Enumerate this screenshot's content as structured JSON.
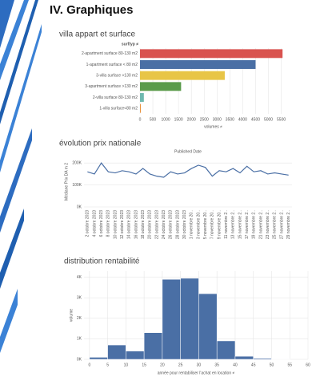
{
  "header": {
    "title": "IV. Graphiques"
  },
  "chart_data": [
    {
      "type": "hbar",
      "title": "villa appart et surface",
      "legend_title": "surftyp ≠",
      "categories": [
        "2-apartment surface 80-130 m2",
        "1-apartment surface < 80 m2",
        "3-villa surface >130 m2",
        "3-apartment surface >130 m2",
        "2-villa surface 80-130 m2",
        "1-villa surface<80 m2"
      ],
      "values": [
        5550,
        4500,
        3300,
        1600,
        150,
        30
      ],
      "colors": [
        "#d9534f",
        "#4a6fa5",
        "#e8c547",
        "#5a9b4b",
        "#6fb9b0",
        "#e8903a"
      ],
      "xlabel": "volumes ≠",
      "xlim": [
        0,
        5700
      ],
      "xticks": [
        0,
        500,
        1000,
        1500,
        2000,
        2500,
        3000,
        3500,
        4000,
        4500,
        5000,
        5500
      ]
    },
    {
      "type": "line",
      "title": "évolution prix nationale",
      "subtitle": "Published Date",
      "ylabel": "Médiane Prix DA m 2",
      "categories": [
        "2 octobre 2023",
        "4 octobre 2023",
        "6 octobre 2023",
        "8 octobre 2023",
        "10 octobre 2023",
        "12 octobre 2023",
        "14 octobre 2023",
        "16 octobre 2023",
        "18 octobre 2023",
        "20 octobre 2023",
        "22 octobre 2023",
        "24 octobre 2023",
        "26 octobre 2023",
        "28 octobre 2023",
        "30 octobre 2023",
        "1 novembre 20..",
        "3 novembre 20..",
        "5 novembre 20..",
        "7 novembre 20..",
        "9 novembre 20..",
        "11 novembre 2..",
        "13 novembre 2..",
        "15 novembre 2..",
        "17 novembre 2..",
        "19 novembre 2..",
        "21 novembre 2..",
        "23 novembre 2..",
        "25 novembre 2..",
        "27 novembre 2..",
        "29 novembre 2.."
      ],
      "values": [
        160000,
        150000,
        200000,
        160000,
        155000,
        165000,
        160000,
        150000,
        175000,
        150000,
        140000,
        135000,
        160000,
        150000,
        155000,
        175000,
        190000,
        180000,
        140000,
        165000,
        160000,
        175000,
        155000,
        185000,
        160000,
        165000,
        150000,
        155000,
        150000,
        145000
      ],
      "color": "#4a6fa5",
      "ylim": [
        0,
        230000
      ],
      "yticks": [
        {
          "value": 0,
          "label": "0K"
        },
        {
          "value": 100000,
          "label": "100K"
        },
        {
          "value": 200000,
          "label": "200K"
        }
      ]
    },
    {
      "type": "histogram",
      "title": "distribution rentabilité",
      "xlabel": "année pour rentabiliser l'achat en location ≠",
      "ylabel": "volume",
      "bins": [
        0,
        5,
        10,
        15,
        20,
        25,
        30,
        35,
        40,
        45,
        50,
        55
      ],
      "counts": [
        100,
        700,
        400,
        1300,
        3900,
        3950,
        3200,
        900,
        150,
        50,
        20
      ],
      "color": "#4a6fa5",
      "xlim": [
        -1.5,
        60
      ],
      "ylim": [
        0,
        4300
      ],
      "xticks": [
        0,
        5,
        10,
        15,
        20,
        25,
        30,
        35,
        40,
        45,
        50,
        55,
        60
      ],
      "yticks": [
        {
          "value": 0,
          "label": "0K"
        },
        {
          "value": 1000,
          "label": "1K"
        },
        {
          "value": 2000,
          "label": "2K"
        },
        {
          "value": 3000,
          "label": "3K"
        },
        {
          "value": 4000,
          "label": "4K"
        }
      ]
    }
  ]
}
